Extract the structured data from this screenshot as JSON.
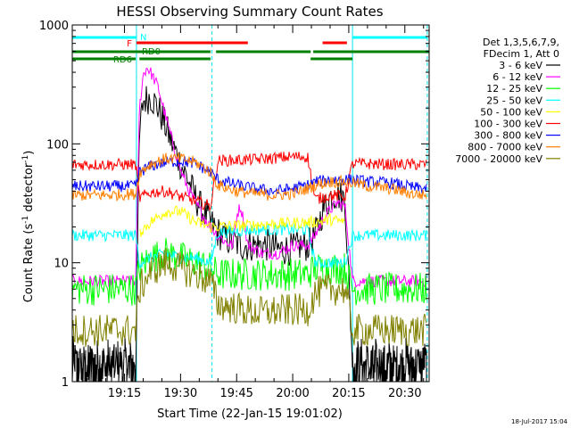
{
  "chart_data": {
    "type": "line",
    "title": "HESSI Observing Summary Count Rates",
    "xlabel": "Start Time (22-Jan-15 19:01:02)",
    "ylabel": "Count Rate (s⁻¹ detector⁻¹)",
    "ylabel_parts": {
      "pre": "Count Rate (s",
      "sup1": "-1",
      "mid": " detector",
      "sup2": "-1",
      "post": ")"
    },
    "yscale": "log",
    "ylim": [
      1,
      1000
    ],
    "xlim_minutes": [
      1.03,
      96.5
    ],
    "x_ticks": [
      {
        "label": "19:15",
        "minute": 15
      },
      {
        "label": "19:30",
        "minute": 30
      },
      {
        "label": "19:45",
        "minute": 45
      },
      {
        "label": "20:00",
        "minute": 60
      },
      {
        "label": "20:15",
        "minute": 75
      },
      {
        "label": "20:30",
        "minute": 90
      }
    ],
    "y_ticks": [
      {
        "label": "1",
        "value": 1
      },
      {
        "label": "10",
        "value": 10
      },
      {
        "label": "100",
        "value": 100
      },
      {
        "label": "1000",
        "value": 1000
      }
    ],
    "legend_header": [
      "Det 1,3,5,6,7,9,",
      "FDecim 1, Att 0"
    ],
    "legend_position": "right",
    "night_boundaries_minutes": [
      18.2,
      76.0
    ],
    "saa_boundaries_minutes": [
      38.4,
      96.0
    ],
    "flags": [
      {
        "label": "N",
        "color": "#00ffff",
        "segments": [
          [
            1.0,
            18.2
          ],
          [
            76.0,
            96.0
          ]
        ]
      },
      {
        "label": "F",
        "color": "#ff0000",
        "segments": [
          [
            18.2,
            48.0
          ],
          [
            68.0,
            74.5
          ]
        ]
      },
      {
        "label": "RD0",
        "color": "#008000",
        "segments": [
          [
            1.0,
            38.0
          ],
          [
            39.5,
            64.8
          ],
          [
            65.5,
            96.5
          ]
        ]
      },
      {
        "label": "RD6",
        "color": "#008000",
        "segments": [
          [
            1.0,
            18.0
          ],
          [
            19.0,
            38.0
          ],
          [
            64.8,
            76.0
          ]
        ]
      }
    ],
    "series": [
      {
        "name": "3 - 6 keV",
        "color": "#000000",
        "x": [
          1,
          18,
          19,
          20,
          22,
          24,
          26,
          28,
          30,
          32,
          34,
          36,
          38,
          40,
          42,
          44,
          46,
          48,
          50,
          52,
          54,
          56,
          58,
          60,
          62,
          64,
          66,
          68,
          70,
          72,
          74,
          76,
          78,
          80,
          82,
          84,
          86,
          88,
          90,
          92,
          94,
          96
        ],
        "y": [
          1.5,
          1.5,
          120,
          230,
          250,
          200,
          140,
          95,
          68,
          50,
          35,
          27,
          22,
          18,
          16,
          15,
          14,
          14,
          14,
          14,
          14,
          13,
          13,
          13,
          14,
          14,
          17,
          27,
          36,
          38,
          34,
          1.5,
          1.5,
          1.5,
          1.5,
          1.5,
          1.5,
          1.5,
          1.5,
          1.5,
          1.5,
          1.5
        ]
      },
      {
        "name": "6 - 12 keV",
        "color": "#ff00ff",
        "x": [
          1,
          18,
          19,
          20,
          21,
          22,
          24,
          26,
          28,
          30,
          32,
          34,
          36,
          38,
          40,
          42,
          44,
          45,
          46,
          47,
          48,
          50,
          52,
          54,
          56,
          58,
          60,
          62,
          64,
          66,
          68,
          70,
          72,
          74,
          76,
          78,
          80,
          82,
          84,
          86,
          88,
          90,
          92,
          94,
          96
        ],
        "y": [
          7,
          7,
          200,
          380,
          440,
          400,
          300,
          170,
          100,
          60,
          42,
          32,
          25,
          20,
          17,
          15,
          14,
          25,
          30,
          22,
          14,
          13,
          12,
          12,
          12,
          13,
          14,
          14,
          14,
          17,
          23,
          28,
          32,
          30,
          7,
          7,
          7,
          7,
          7,
          7,
          7,
          7,
          7,
          7,
          7
        ]
      },
      {
        "name": "12 - 25 keV",
        "color": "#00ff00",
        "x": [
          1,
          18,
          19,
          22,
          26,
          30,
          34,
          38,
          40,
          50,
          60,
          64,
          66,
          70,
          74,
          76,
          80,
          88,
          96
        ],
        "y": [
          6,
          6,
          9,
          11,
          12,
          11,
          10,
          9,
          8,
          8,
          8,
          8,
          9,
          9,
          9,
          6,
          6,
          6,
          6
        ]
      },
      {
        "name": "25 - 50 keV",
        "color": "#00ffff",
        "x": [
          1,
          18,
          19,
          22,
          26,
          30,
          34,
          38,
          40,
          50,
          60,
          64,
          66,
          70,
          74,
          76,
          80,
          88,
          96
        ],
        "y": [
          17,
          17,
          10,
          11,
          12,
          11,
          11,
          10,
          18,
          19,
          19,
          19,
          10,
          10,
          10,
          17,
          17,
          17,
          17
        ]
      },
      {
        "name": "50 - 100 keV",
        "color": "#ffff00",
        "x": [
          19,
          22,
          26,
          30,
          34,
          38,
          66,
          70,
          74
        ],
        "y": [
          18,
          22,
          27,
          27,
          22,
          20,
          22,
          23,
          22
        ]
      },
      {
        "name": "100 - 300 keV",
        "color": "#ff0000",
        "x": [
          1,
          18,
          19,
          22,
          26,
          30,
          34,
          38,
          40,
          50,
          60,
          64,
          66,
          70,
          74,
          76,
          80,
          88,
          96
        ],
        "y": [
          67,
          67,
          35,
          39,
          40,
          36,
          33,
          30,
          72,
          74,
          78,
          78,
          34,
          37,
          36,
          68,
          68,
          67,
          67
        ]
      },
      {
        "name": "300 - 800 keV",
        "color": "#0000ff",
        "x": [
          1,
          10,
          18,
          19,
          22,
          26,
          30,
          34,
          38,
          40,
          45,
          50,
          55,
          60,
          64,
          66,
          70,
          74,
          76,
          80,
          86,
          92,
          96
        ],
        "y": [
          44,
          44,
          44,
          58,
          65,
          70,
          72,
          68,
          58,
          50,
          45,
          42,
          40,
          42,
          45,
          48,
          50,
          50,
          50,
          48,
          47,
          43,
          42
        ]
      },
      {
        "name": "800 - 7000 keV",
        "color": "#ff8000",
        "x": [
          1,
          10,
          18,
          19,
          22,
          26,
          30,
          34,
          38,
          40,
          45,
          50,
          55,
          60,
          64,
          66,
          70,
          74,
          76,
          80,
          86,
          92,
          96
        ],
        "y": [
          37,
          37,
          38,
          57,
          68,
          75,
          75,
          70,
          58,
          45,
          40,
          38,
          37,
          38,
          42,
          45,
          48,
          48,
          47,
          44,
          42,
          38,
          37
        ]
      },
      {
        "name": "7000 - 20000 keV",
        "color": "#808000",
        "x": [
          1,
          18,
          19,
          22,
          26,
          30,
          34,
          38,
          40,
          50,
          60,
          64,
          66,
          70,
          74,
          76,
          80,
          88,
          96
        ],
        "y": [
          2.7,
          2.7,
          6,
          8.5,
          10,
          9,
          8,
          7,
          4.5,
          3.8,
          4,
          4,
          5.5,
          6,
          6,
          2.7,
          2.7,
          2.7,
          2.7
        ]
      }
    ]
  },
  "footer": {
    "timestamp": "18-Jul-2017 15:04"
  }
}
